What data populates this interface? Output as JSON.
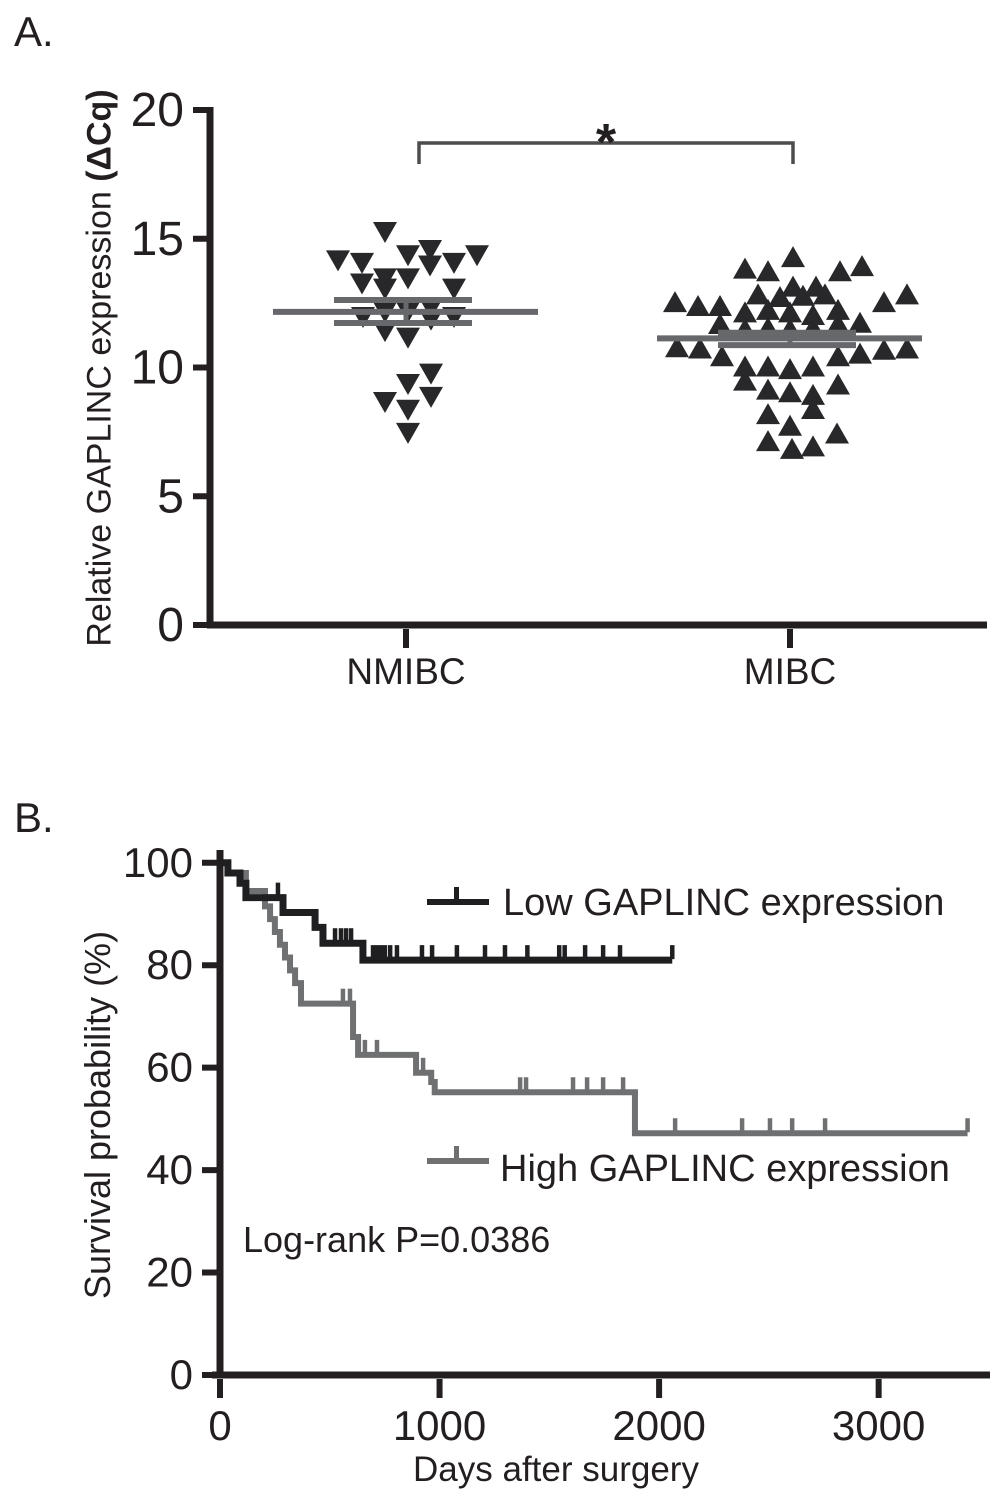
{
  "figure": {
    "panel_a_label": "A.",
    "panel_b_label": "B."
  },
  "colors": {
    "ink": "#231f20",
    "marker": "#28282a",
    "mean_line_gray": "#66686b",
    "bracket": "#4d4d4f",
    "km_low": "#1f1f21",
    "km_high": "#6e7072"
  },
  "chart_data": [
    {
      "panel": "A",
      "type": "scatter",
      "ylabel_main": "Relative GAPLINC expression ",
      "ylabel_units": "(ΔCq)",
      "ylim": [
        0,
        20
      ],
      "yticks": [
        0,
        5,
        10,
        15,
        20
      ],
      "categories": [
        "NMIBC",
        "MIBC"
      ],
      "significance": "*",
      "groups": [
        {
          "name": "NMIBC",
          "marker": "triangle-down",
          "mean": 12.16,
          "sem_high": 12.62,
          "sem_low": 11.73,
          "points": [
            [
              -21,
              15.3
            ],
            [
              -68,
              14.2
            ],
            [
              -44,
              14.1
            ],
            [
              2,
              14.4
            ],
            [
              24,
              14.6
            ],
            [
              48,
              14.1
            ],
            [
              71,
              14.4
            ],
            [
              -44,
              13.3
            ],
            [
              -21,
              13.5
            ],
            [
              -21,
              13.1
            ],
            [
              2,
              13.5
            ],
            [
              24,
              14.0
            ],
            [
              48,
              13.1
            ],
            [
              25,
              12.35
            ],
            [
              -43,
              12.0
            ],
            [
              -21,
              12.2
            ],
            [
              2,
              12.2
            ],
            [
              25,
              11.9
            ],
            [
              48,
              12.0
            ],
            [
              -21,
              11.45
            ],
            [
              2,
              11.2
            ],
            [
              2,
              9.4
            ],
            [
              25,
              9.8
            ],
            [
              25,
              8.9
            ],
            [
              -21,
              8.7
            ],
            [
              2,
              8.4
            ],
            [
              2,
              7.5
            ]
          ]
        },
        {
          "name": "MIBC",
          "marker": "triangle-up",
          "mean": 11.13,
          "sem_high": 11.35,
          "sem_low": 10.87,
          "points": [
            [
              3,
              14.25
            ],
            [
              -45,
              13.8
            ],
            [
              -22,
              13.7
            ],
            [
              50,
              13.7
            ],
            [
              72,
              13.9
            ],
            [
              3,
              13.1
            ],
            [
              26,
              13.1
            ],
            [
              -32,
              12.8
            ],
            [
              -10,
              12.7
            ],
            [
              13,
              12.75
            ],
            [
              35,
              12.8
            ],
            [
              117,
              12.8
            ],
            [
              -115,
              12.5
            ],
            [
              -92,
              12.35
            ],
            [
              -70,
              12.35
            ],
            [
              94,
              12.5
            ],
            [
              -45,
              12.1
            ],
            [
              -22,
              12.2
            ],
            [
              0,
              12.1
            ],
            [
              23,
              12.0
            ],
            [
              48,
              12.2
            ],
            [
              -70,
              11.65
            ],
            [
              -45,
              11.45
            ],
            [
              -22,
              11.5
            ],
            [
              0,
              11.45
            ],
            [
              23,
              11.5
            ],
            [
              48,
              11.65
            ],
            [
              70,
              11.7
            ],
            [
              -113,
              10.75
            ],
            [
              -90,
              10.7
            ],
            [
              -68,
              10.4
            ],
            [
              94,
              10.65
            ],
            [
              117,
              10.7
            ],
            [
              70,
              10.5
            ],
            [
              48,
              10.4
            ],
            [
              -45,
              10.0
            ],
            [
              -22,
              10.0
            ],
            [
              0,
              9.9
            ],
            [
              23,
              10.0
            ],
            [
              -45,
              9.45
            ],
            [
              48,
              9.3
            ],
            [
              -22,
              9.1
            ],
            [
              0,
              9.0
            ],
            [
              23,
              8.9
            ],
            [
              -22,
              8.15
            ],
            [
              0,
              7.7
            ],
            [
              23,
              8.35
            ],
            [
              -22,
              7.1
            ],
            [
              2,
              6.8
            ],
            [
              23,
              6.9
            ],
            [
              47,
              7.4
            ]
          ]
        }
      ]
    },
    {
      "panel": "B",
      "type": "line",
      "subtype": "kaplan-meier",
      "xlabel": "Days after surgery",
      "ylabel": "Survival probability (%)",
      "annotation": "Log-rank P=0.0386",
      "xlim": [
        0,
        3500
      ],
      "ylim": [
        0,
        100
      ],
      "xticks": [
        0,
        1000,
        2000,
        3000
      ],
      "yticks": [
        0,
        20,
        40,
        60,
        80,
        100
      ],
      "series": [
        {
          "name": "Low GAPLINC expression",
          "color": "#1f1f21",
          "steps": [
            [
              0,
              100
            ],
            [
              36,
              98
            ],
            [
              91,
              96
            ],
            [
              118,
              93.2
            ],
            [
              287,
              90.3
            ],
            [
              433,
              87.4
            ],
            [
              469,
              84.3
            ],
            [
              651,
              81
            ],
            [
              2060,
              81
            ]
          ],
          "censors": [
            [
              264,
              93.2
            ],
            [
              524,
              84.3
            ],
            [
              551,
              84.3
            ],
            [
              574,
              84.3
            ],
            [
              597,
              84.3
            ],
            [
              697,
              81
            ],
            [
              715,
              81
            ],
            [
              733,
              81
            ],
            [
              751,
              81
            ],
            [
              775,
              81
            ],
            [
              806,
              81
            ],
            [
              920,
              81
            ],
            [
              966,
              81
            ],
            [
              1079,
              81
            ],
            [
              1207,
              81
            ],
            [
              1298,
              81
            ],
            [
              1400,
              81
            ],
            [
              1545,
              81
            ],
            [
              1570,
              81
            ],
            [
              1663,
              81
            ],
            [
              1745,
              81
            ],
            [
              1822,
              81
            ],
            [
              2060,
              81
            ]
          ]
        },
        {
          "name": "High GAPLINC expression",
          "color": "#6e7072",
          "steps": [
            [
              0,
              100
            ],
            [
              36,
              98
            ],
            [
              118,
              94.5
            ],
            [
              205,
              91.5
            ],
            [
              228,
              89
            ],
            [
              250,
              86.5
            ],
            [
              273,
              84
            ],
            [
              296,
              81.5
            ],
            [
              319,
              79
            ],
            [
              342,
              76.5
            ],
            [
              369,
              72.5
            ],
            [
              606,
              66
            ],
            [
              629,
              62.5
            ],
            [
              893,
              59
            ],
            [
              962,
              57.2
            ],
            [
              978,
              55.2
            ],
            [
              1890,
              47.2
            ],
            [
              3405,
              47.2
            ]
          ],
          "censors": [
            [
              560,
              72.5
            ],
            [
              592,
              72.5
            ],
            [
              660,
              62.5
            ],
            [
              715,
              62.5
            ],
            [
              925,
              59
            ],
            [
              1367,
              55.2
            ],
            [
              1394,
              55.2
            ],
            [
              1608,
              55.2
            ],
            [
              1672,
              55.2
            ],
            [
              1745,
              55.2
            ],
            [
              1836,
              55.2
            ],
            [
              2073,
              47.2
            ],
            [
              2378,
              47.2
            ],
            [
              2505,
              47.2
            ],
            [
              2606,
              47.2
            ],
            [
              2756,
              47.2
            ],
            [
              3405,
              47.2
            ]
          ]
        }
      ]
    }
  ]
}
